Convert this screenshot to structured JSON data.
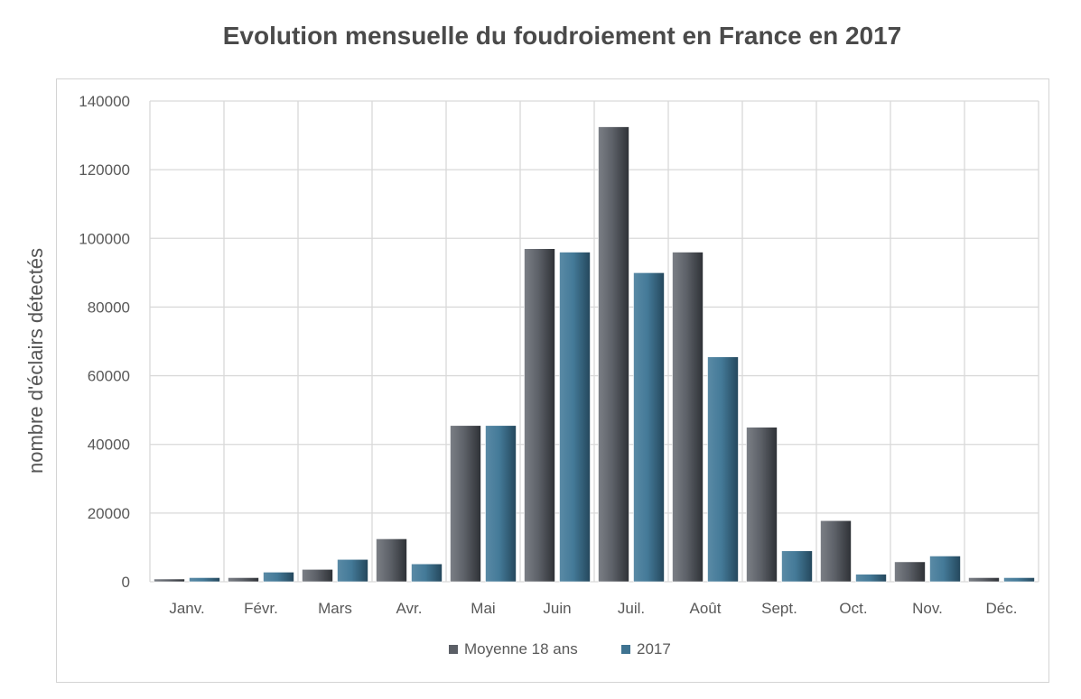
{
  "chart_data": {
    "type": "bar",
    "title": "Evolution mensuelle du foudroiement en France en 2017",
    "xlabel": "",
    "ylabel": "nombre d'éclairs détectés",
    "categories": [
      "Janv.",
      "Févr.",
      "Mars",
      "Avr.",
      "Mai",
      "Juin",
      "Juil.",
      "Août",
      "Sept.",
      "Oct.",
      "Nov.",
      "Déc."
    ],
    "series": [
      {
        "name": "Moyenne 18 ans",
        "color": "#5b5f66",
        "values": [
          800,
          1200,
          3600,
          12500,
          45500,
          97000,
          132500,
          96000,
          45000,
          17800,
          5800,
          1200
        ]
      },
      {
        "name": "2017",
        "color": "#3f7391",
        "values": [
          1200,
          2800,
          6500,
          5200,
          45500,
          96000,
          90000,
          65500,
          9000,
          2200,
          7500,
          1200
        ]
      }
    ],
    "ylim": [
      0,
      140000
    ],
    "yticks": [
      "0",
      "20000",
      "40000",
      "60000",
      "80000",
      "100000",
      "120000",
      "140000"
    ],
    "grid": true,
    "legend_position": "bottom"
  }
}
